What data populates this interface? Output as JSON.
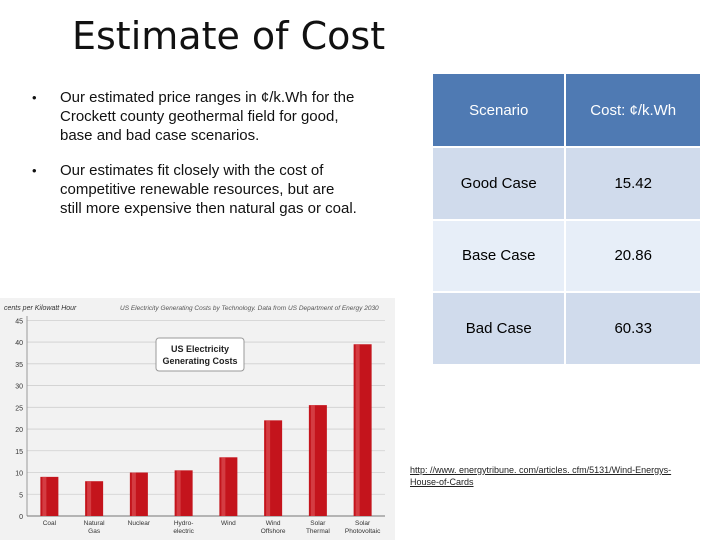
{
  "title": "Estimate of Cost",
  "bullets": [
    "Our  estimated price ranges in ¢/k.Wh for the Crockett county geothermal field for good, base and bad case scenarios.",
    "Our estimates fit closely with the cost of competitive renewable resources, but are still more expensive then natural gas or coal."
  ],
  "table": {
    "headers": [
      "Scenario",
      "Cost: ¢/k.Wh"
    ],
    "rows": [
      [
        "Good Case",
        "15.42"
      ],
      [
        "Base Case",
        "20.86"
      ],
      [
        "Bad Case",
        "60.33"
      ]
    ]
  },
  "source_link": "http: //www. energytribune. com/articles. cfm/5131/Wind-Energys-House-of-Cards",
  "chart_data": {
    "type": "bar",
    "title": "US Electricity Generating Costs",
    "subtitle": "US Electricity Generating Costs by Technology. Data from US Department of Energy 2030",
    "ylabel": "cents per Kilowatt Hour",
    "categories": [
      "Coal",
      "Natural Gas",
      "Nuclear",
      "Hydro-electric",
      "Wind",
      "Wind Offshore",
      "Solar Thermal",
      "Solar Photovoltaic"
    ],
    "values": [
      9,
      8,
      10,
      10.5,
      13.5,
      22,
      25.5,
      39.5
    ],
    "ylim": [
      0,
      46
    ],
    "yticks": [
      0,
      5,
      10,
      15,
      20,
      25,
      30,
      35,
      40,
      45
    ],
    "grid": true,
    "bar_color": "#c4141c"
  }
}
